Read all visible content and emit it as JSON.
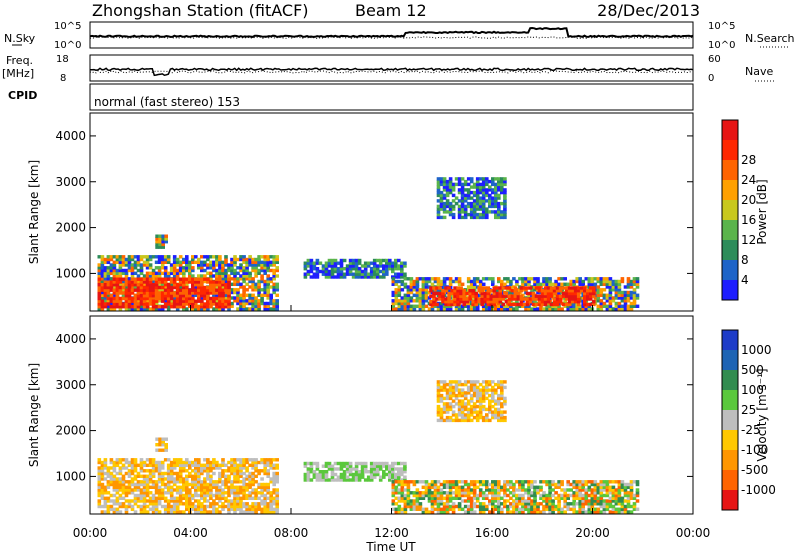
{
  "header": {
    "station": "Zhongshan Station (fitACF)",
    "beam": "Beam 12",
    "date": "28/Dec/2013"
  },
  "panels": {
    "nsky": {
      "left_label": "N.Sky",
      "right_label": "N.Search",
      "left_ticks": [
        "10^5",
        "10^0"
      ],
      "right_ticks": [
        "10^5",
        "10^0"
      ]
    },
    "freq": {
      "left_label_1": "Freq.",
      "left_label_2": "[MHz]",
      "left_ticks": [
        "18",
        "8"
      ],
      "right_ticks": [
        "60",
        "0"
      ],
      "right_label": "Nave"
    },
    "cpid": {
      "label": "CPID",
      "text": "normal (fast stereo) 153"
    }
  },
  "chart_data": [
    {
      "type": "heatmap",
      "name": "power",
      "ylabel": "Slant Range [km]",
      "ylim": [
        180,
        4500
      ],
      "yticks": [
        "1000",
        "2000",
        "3000",
        "4000"
      ],
      "colorbar": {
        "label": "Power [dB]",
        "ticks": [
          "4",
          "8",
          "12",
          "16",
          "20",
          "24",
          "28"
        ],
        "colors": [
          "#1e1eff",
          "#1e64c8",
          "#2d8c5a",
          "#5ab44b",
          "#c8c81e",
          "#ffa000",
          "#ff6400",
          "#ff2800",
          "#e61414"
        ]
      },
      "regions": [
        {
          "t0": 0.3,
          "t1": 7.5,
          "r0": 200,
          "r1": 1350,
          "level": "mid"
        },
        {
          "t0": 0.3,
          "t1": 5.5,
          "r0": 250,
          "r1": 900,
          "level": "high"
        },
        {
          "t0": 2.6,
          "t1": 3.0,
          "r0": 1550,
          "r1": 1850,
          "level": "mid"
        },
        {
          "t0": 8.5,
          "t1": 12.5,
          "r0": 900,
          "r1": 1300,
          "level": "low"
        },
        {
          "t0": 12.0,
          "t1": 21.8,
          "r0": 200,
          "r1": 900,
          "level": "mid"
        },
        {
          "t0": 13.5,
          "t1": 20.0,
          "r0": 300,
          "r1": 700,
          "level": "high"
        },
        {
          "t0": 13.8,
          "t1": 16.5,
          "r0": 2200,
          "r1": 3100,
          "level": "low"
        }
      ]
    },
    {
      "type": "heatmap",
      "name": "velocity",
      "xlabel": "Time UT",
      "ylabel": "Slant Range [km]",
      "ylim": [
        180,
        4500
      ],
      "yticks": [
        "1000",
        "2000",
        "3000",
        "4000"
      ],
      "xticks": [
        "00:00",
        "04:00",
        "08:00",
        "12:00",
        "16:00",
        "20:00",
        "00:00"
      ],
      "colorbar": {
        "label": "Velocity [m s⁻¹]",
        "ticks": [
          "1000",
          "500",
          "100",
          "25",
          "-25",
          "-100",
          "-500",
          "-1000"
        ],
        "colors": [
          "#1e3cc8",
          "#1e64b4",
          "#328c50",
          "#5ac83c",
          "#bebebe",
          "#ffc800",
          "#ff9600",
          "#ff6400",
          "#e61414"
        ]
      },
      "regions": [
        {
          "t0": 0.3,
          "t1": 7.5,
          "r0": 200,
          "r1": 1350,
          "level": "neg"
        },
        {
          "t0": 2.6,
          "t1": 3.0,
          "r0": 1550,
          "r1": 1850,
          "level": "neg"
        },
        {
          "t0": 8.5,
          "t1": 12.5,
          "r0": 900,
          "r1": 1300,
          "level": "zero"
        },
        {
          "t0": 12.0,
          "t1": 21.8,
          "r0": 200,
          "r1": 900,
          "level": "mix"
        },
        {
          "t0": 13.8,
          "t1": 16.5,
          "r0": 2200,
          "r1": 3100,
          "level": "neg"
        }
      ]
    }
  ]
}
